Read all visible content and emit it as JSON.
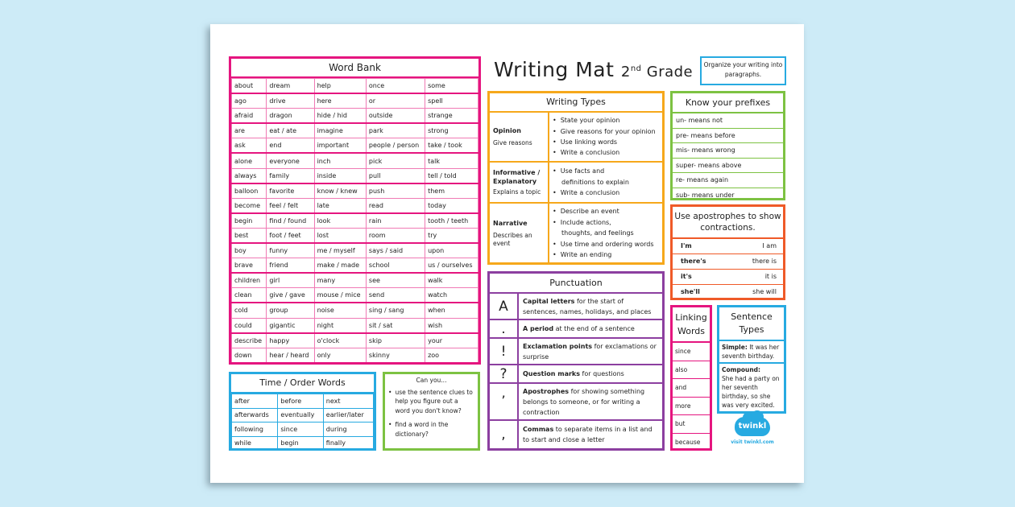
{
  "title": {
    "main": "Writing Mat",
    "grade_num": "2",
    "grade_sup": "nd",
    "grade_word": "Grade"
  },
  "tip": "Organize your writing into paragraphs.",
  "word_bank": {
    "title": "Word Bank",
    "rows": [
      [
        "about",
        "dream",
        "help",
        "once",
        "some"
      ],
      [
        "ago",
        "drive",
        "here",
        "or",
        "spell"
      ],
      [
        "afraid",
        "dragon",
        "hide / hid",
        "outside",
        "strange"
      ],
      [
        "are",
        "eat / ate",
        "imagine",
        "park",
        "strong"
      ],
      [
        "ask",
        "end",
        "important",
        "people / person",
        "take / took"
      ],
      [
        "alone",
        "everyone",
        "inch",
        "pick",
        "talk"
      ],
      [
        "always",
        "family",
        "inside",
        "pull",
        "tell / told"
      ],
      [
        "balloon",
        "favorite",
        "know / knew",
        "push",
        "them"
      ],
      [
        "become",
        "feel / felt",
        "late",
        "read",
        "today"
      ],
      [
        "begin",
        "find / found",
        "look",
        "rain",
        "tooth / teeth"
      ],
      [
        "best",
        "foot / feet",
        "lost",
        "room",
        "try"
      ],
      [
        "boy",
        "funny",
        "me / myself",
        "says / said",
        "upon"
      ],
      [
        "brave",
        "friend",
        "make / made",
        "school",
        "us / ourselves"
      ],
      [
        "children",
        "girl",
        "many",
        "see",
        "walk"
      ],
      [
        "clean",
        "give / gave",
        "mouse / mice",
        "send",
        "watch"
      ],
      [
        "cold",
        "group",
        "noise",
        "sing / sang",
        "when"
      ],
      [
        "could",
        "gigantic",
        "night",
        "sit / sat",
        "wish"
      ],
      [
        "describe",
        "happy",
        "o'clock",
        "skip",
        "your"
      ],
      [
        "down",
        "hear / heard",
        "only",
        "skinny",
        "zoo"
      ]
    ]
  },
  "time_order": {
    "title": "Time / Order Words",
    "rows": [
      [
        "after",
        "before",
        "next"
      ],
      [
        "afterwards",
        "eventually",
        "earlier/later"
      ],
      [
        "following",
        "since",
        "during"
      ],
      [
        "while",
        "begin",
        "finally"
      ]
    ]
  },
  "can_you": {
    "title": "Can you...",
    "items": [
      "use the sentence clues to help you figure out a word you don't know?",
      "find a word in the dictionary?"
    ]
  },
  "writing_types": {
    "title": "Writing Types",
    "types": [
      {
        "name": "Opinion",
        "desc": "Give reasons",
        "points": [
          "State your opinion",
          "Give reasons for your opinion",
          "Use linking words",
          "Write a conclusion"
        ]
      },
      {
        "name": "Informative / Explanatory",
        "desc": "Explains a topic",
        "points": [
          "Use facts and",
          "definitions to explain",
          "Write  a conclusion"
        ]
      },
      {
        "name": "Narrative",
        "desc": "Describes an event",
        "points": [
          "Describe an event",
          "Include actions,",
          "thoughts, and feelings",
          "Use time and ordering words",
          "Write an ending"
        ]
      }
    ]
  },
  "punctuation": {
    "title": "Punctuation",
    "items": [
      {
        "symbol": "A",
        "bold": "Capital letters",
        "text": " for the start of sentences, names, holidays, and places"
      },
      {
        "symbol": ".",
        "bold": "A period",
        "text": " at the end of a sentence"
      },
      {
        "symbol": "!",
        "bold": "Exclamation points",
        "text": " for exclamations or surprise"
      },
      {
        "symbol": "?",
        "bold": "Question marks",
        "text": " for questions"
      },
      {
        "symbol": "’",
        "bold": "Apostrophes",
        "text": " for showing something belongs to someone, or for writing a contraction"
      },
      {
        "symbol": ",",
        "bold": "Commas",
        "text": " to separate items in a list and to start and close a letter"
      }
    ]
  },
  "prefixes": {
    "title": "Know your prefixes",
    "items": [
      "un- means not",
      "pre- means before",
      "mis- means wrong",
      "super- means above",
      "re- means again",
      "sub- means under"
    ]
  },
  "contractions": {
    "title": "Use apostrophes to show contractions.",
    "items": [
      {
        "short": "I'm",
        "long": "I am"
      },
      {
        "short": "there's",
        "long": "there is"
      },
      {
        "short": "it's",
        "long": "it is"
      },
      {
        "short": "she'll",
        "long": "she will"
      }
    ]
  },
  "linking_words": {
    "title": "Linking Words",
    "items": [
      "since",
      "also",
      "and",
      "more",
      "but",
      "because"
    ]
  },
  "sentence_types": {
    "title": "Sentence Types",
    "simple_label": "Simple:",
    "simple_text": " It was her seventh birthday.",
    "compound_label": "Compound:",
    "compound_text": "She had a party on her seventh birthday, so she was very excited."
  },
  "brand": {
    "logo_text": "twinkl",
    "url": "visit twinkl.com"
  },
  "colors": {
    "background": "#cdebf7",
    "pink": "#e5157f",
    "blue": "#27aae1",
    "green": "#7dc242",
    "orange": "#f6a81b",
    "purple": "#8c3fa0",
    "red_orange": "#ef5a28"
  }
}
